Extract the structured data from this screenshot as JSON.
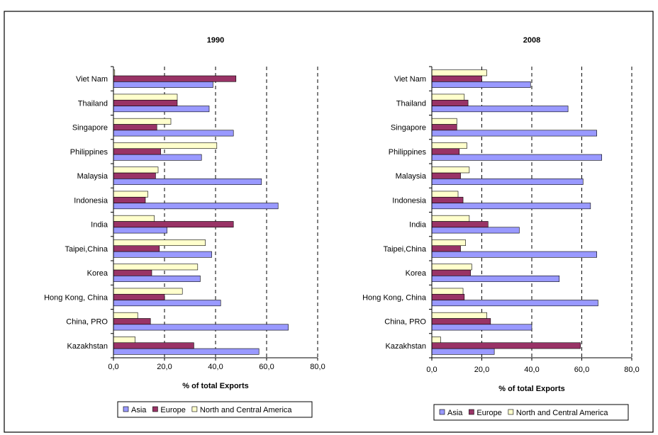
{
  "header_fragment": "",
  "colors": {
    "asia": "#9999FF",
    "europe": "#993366",
    "nca": "#FFFFCC",
    "bar_stroke": "#000000",
    "frame_stroke": "#000000",
    "grid": "#000000"
  },
  "chart_data": [
    {
      "type": "bar",
      "orientation": "horizontal",
      "title": "1990",
      "xlabel": "% of total Exports",
      "xlim": [
        0,
        80
      ],
      "x_ticks": [
        "0,0",
        "20,0",
        "40,0",
        "60,0",
        "80,0"
      ],
      "grid": "vertical dashed",
      "legend_position": "bottom",
      "categories": [
        "Viet Nam",
        "Thailand",
        "Singapore",
        "Philippines",
        "Malaysia",
        "Indonesia",
        "India",
        "Taipei,China",
        "Korea",
        "Hong Kong, China",
        "China, PRO",
        "Kazakhstan"
      ],
      "series": [
        {
          "name": "Asia",
          "color_key": "asia",
          "values": [
            39,
            37.5,
            47,
            34.5,
            58,
            64.5,
            21,
            38.5,
            34,
            42,
            68.5,
            57
          ]
        },
        {
          "name": "Europe",
          "color_key": "europe",
          "values": [
            48,
            25,
            17,
            18.5,
            16.5,
            12.5,
            47,
            18,
            15,
            20,
            14.5,
            31.5
          ]
        },
        {
          "name": "North and Central America",
          "color_key": "nca",
          "values": [
            0.5,
            25,
            22.5,
            40.5,
            17.5,
            13.5,
            16,
            36,
            33,
            27,
            9.5,
            8.5
          ]
        }
      ]
    },
    {
      "type": "bar",
      "orientation": "horizontal",
      "title": "2008",
      "xlabel": "% of total Exports",
      "xlim": [
        0,
        80
      ],
      "x_ticks": [
        "0,0",
        "20,0",
        "40,0",
        "60,0",
        "80,0"
      ],
      "grid": "vertical dashed",
      "legend_position": "bottom",
      "categories": [
        "Viet Nam",
        "Thailand",
        "Singapore",
        "Philippines",
        "Malaysia",
        "Indonesia",
        "India",
        "Taipei,China",
        "Korea",
        "Hong Kong, China",
        "China, PRO",
        "Kazakhstan"
      ],
      "series": [
        {
          "name": "Asia",
          "color_key": "asia",
          "values": [
            39.5,
            54.5,
            66,
            68,
            60.5,
            63.5,
            35,
            66,
            51,
            66.5,
            40,
            25
          ]
        },
        {
          "name": "Europe",
          "color_key": "europe",
          "values": [
            20,
            14.5,
            10,
            11,
            11.5,
            12.5,
            22.5,
            11.5,
            15.5,
            13,
            23.5,
            59.5
          ]
        },
        {
          "name": "North and Central America",
          "color_key": "nca",
          "values": [
            22,
            13,
            10,
            14,
            15,
            10.5,
            15,
            13.5,
            16,
            12.5,
            22,
            3.5
          ]
        }
      ]
    }
  ]
}
